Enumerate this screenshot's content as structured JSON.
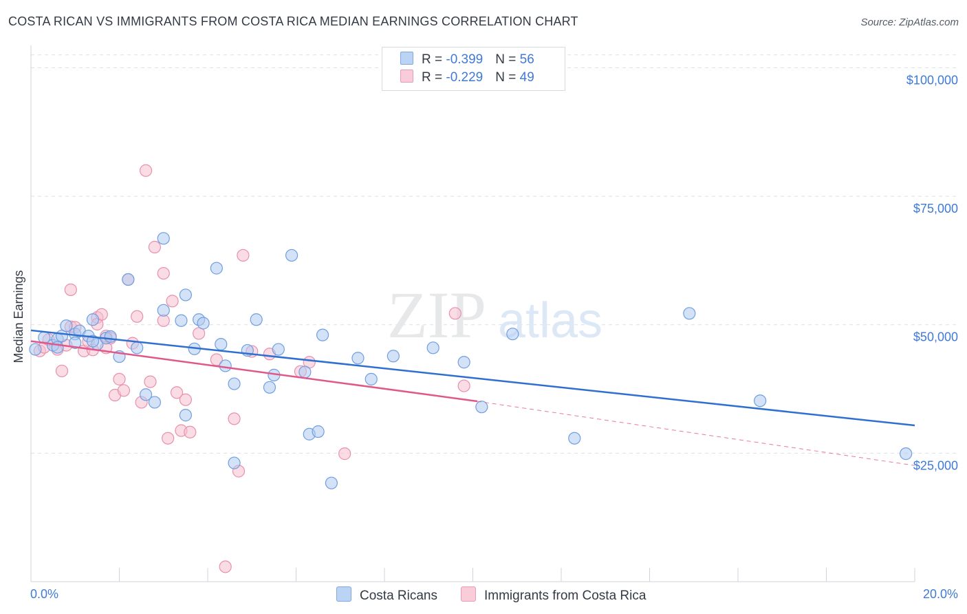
{
  "title": "COSTA RICAN VS IMMIGRANTS FROM COSTA RICA MEDIAN EARNINGS CORRELATION CHART",
  "source": "Source: ZipAtlas.com",
  "watermark": {
    "zip": "ZIP",
    "atlas": "atlas"
  },
  "colors": {
    "blue_fill": "#aecbf0",
    "blue_stroke": "#6f9ee0",
    "blue_line": "#2e6fd0",
    "pink_fill": "#f6bfd0",
    "pink_stroke": "#e98fae",
    "pink_line": "#e0578a",
    "axis_text": "#3e7ad6",
    "grid": "#dcdfe4"
  },
  "legend": [
    {
      "r_label": "R = ",
      "r_value": "-0.399",
      "n_label": "N = ",
      "n_value": "56"
    },
    {
      "r_label": "R = ",
      "r_value": "-0.229",
      "n_label": "N = ",
      "n_value": "49"
    }
  ],
  "bottom_legend": [
    "Costa Ricans",
    "Immigrants from Costa Rica"
  ],
  "chart_data": {
    "type": "scatter",
    "title": "COSTA RICAN VS IMMIGRANTS FROM COSTA RICA MEDIAN EARNINGS CORRELATION CHART",
    "xlabel": "",
    "ylabel": "Median Earnings",
    "xlim": [
      0,
      20
    ],
    "ylim": [
      0,
      102500
    ],
    "x_tick_labels": {
      "left": "0.0%",
      "right": "20.0%"
    },
    "y_ticks": [
      25000,
      50000,
      75000,
      100000
    ],
    "y_tick_labels": [
      "$25,000",
      "$50,000",
      "$75,000",
      "$100,000"
    ],
    "grid": true,
    "series": [
      {
        "name": "Costa Ricans",
        "r": -0.399,
        "n": 56,
        "trend": {
          "x": [
            0,
            20
          ],
          "y": [
            48900,
            30400
          ],
          "dashed_extension": false
        },
        "points": [
          [
            0.1,
            45200
          ],
          [
            0.3,
            47500
          ],
          [
            0.5,
            46000
          ],
          [
            0.6,
            47200
          ],
          [
            0.7,
            47800
          ],
          [
            0.8,
            49800
          ],
          [
            1.0,
            48200
          ],
          [
            1.0,
            46500
          ],
          [
            1.1,
            48800
          ],
          [
            1.3,
            47800
          ],
          [
            1.4,
            51000
          ],
          [
            1.5,
            46200
          ],
          [
            1.7,
            47400
          ],
          [
            1.8,
            47700
          ],
          [
            2.0,
            43800
          ],
          [
            2.2,
            58800
          ],
          [
            2.4,
            45500
          ],
          [
            2.6,
            36400
          ],
          [
            2.8,
            34900
          ],
          [
            3.0,
            52800
          ],
          [
            3.0,
            66800
          ],
          [
            3.4,
            50800
          ],
          [
            3.5,
            55800
          ],
          [
            3.5,
            32400
          ],
          [
            3.7,
            45300
          ],
          [
            3.8,
            51000
          ],
          [
            3.9,
            50300
          ],
          [
            4.2,
            61000
          ],
          [
            4.3,
            46200
          ],
          [
            4.4,
            42000
          ],
          [
            4.6,
            38500
          ],
          [
            4.6,
            23100
          ],
          [
            4.9,
            45000
          ],
          [
            5.1,
            51000
          ],
          [
            5.4,
            37800
          ],
          [
            5.5,
            40200
          ],
          [
            5.6,
            45200
          ],
          [
            5.9,
            63500
          ],
          [
            6.2,
            40800
          ],
          [
            6.3,
            28700
          ],
          [
            6.5,
            29200
          ],
          [
            6.6,
            48000
          ],
          [
            6.8,
            19200
          ],
          [
            7.4,
            43500
          ],
          [
            7.7,
            39400
          ],
          [
            8.2,
            43900
          ],
          [
            9.1,
            45500
          ],
          [
            9.8,
            42700
          ],
          [
            10.2,
            34000
          ],
          [
            10.9,
            48200
          ],
          [
            12.3,
            27900
          ],
          [
            14.9,
            52200
          ],
          [
            16.5,
            35200
          ],
          [
            19.8,
            24900
          ],
          [
            0.6,
            45600
          ],
          [
            1.4,
            46800
          ]
        ]
      },
      {
        "name": "Immigrants from Costa Rica",
        "r": -0.229,
        "n": 49,
        "trend": {
          "x": [
            0,
            10.1,
            20
          ],
          "y": [
            46800,
            35100,
            22600
          ],
          "dashed_extension": true
        },
        "points": [
          [
            0.2,
            44900
          ],
          [
            0.3,
            45600
          ],
          [
            0.4,
            47100
          ],
          [
            0.6,
            45200
          ],
          [
            0.7,
            41000
          ],
          [
            0.9,
            49600
          ],
          [
            0.9,
            56800
          ],
          [
            1.0,
            49500
          ],
          [
            1.2,
            44900
          ],
          [
            1.3,
            46700
          ],
          [
            1.4,
            45100
          ],
          [
            1.5,
            51400
          ],
          [
            1.5,
            50100
          ],
          [
            1.6,
            52000
          ],
          [
            1.7,
            47800
          ],
          [
            1.7,
            45500
          ],
          [
            1.8,
            47400
          ],
          [
            1.9,
            36300
          ],
          [
            2.0,
            39400
          ],
          [
            2.1,
            37200
          ],
          [
            2.2,
            58800
          ],
          [
            2.3,
            46400
          ],
          [
            2.4,
            51600
          ],
          [
            2.5,
            34900
          ],
          [
            2.6,
            80000
          ],
          [
            2.7,
            38900
          ],
          [
            2.8,
            65100
          ],
          [
            3.0,
            50800
          ],
          [
            3.0,
            60000
          ],
          [
            3.1,
            27900
          ],
          [
            3.2,
            54600
          ],
          [
            3.3,
            36800
          ],
          [
            3.4,
            29400
          ],
          [
            3.5,
            35400
          ],
          [
            3.6,
            29100
          ],
          [
            3.8,
            48300
          ],
          [
            4.2,
            43200
          ],
          [
            4.4,
            2900
          ],
          [
            4.6,
            31700
          ],
          [
            4.7,
            21500
          ],
          [
            4.8,
            63500
          ],
          [
            5.0,
            44800
          ],
          [
            5.4,
            44300
          ],
          [
            6.1,
            40900
          ],
          [
            6.3,
            42700
          ],
          [
            7.1,
            24900
          ],
          [
            9.6,
            52200
          ],
          [
            9.8,
            38100
          ],
          [
            0.8,
            46000
          ]
        ]
      }
    ]
  }
}
